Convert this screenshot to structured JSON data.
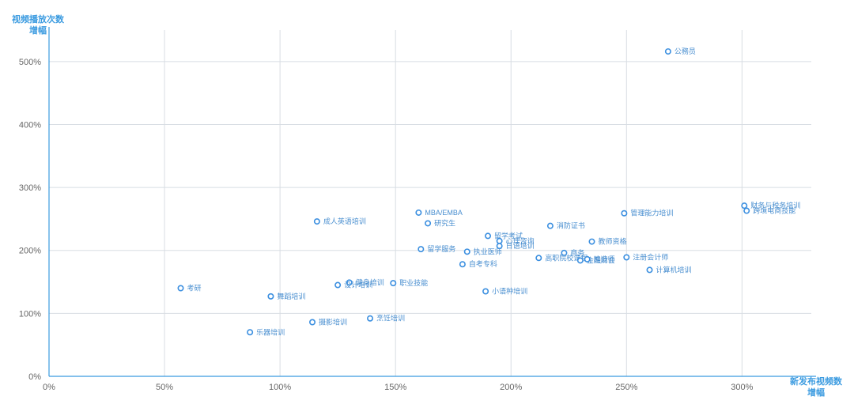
{
  "chart_data": {
    "type": "scatter",
    "title": "",
    "ylabel": [
      "视频播放次数",
      "增幅"
    ],
    "xlabel": [
      "新发布视频数",
      "增幅"
    ],
    "xlim": [
      0,
      330
    ],
    "ylim": [
      0,
      550
    ],
    "x_ticks": [
      0,
      50,
      100,
      150,
      200,
      250,
      300
    ],
    "y_ticks": [
      0,
      100,
      200,
      300,
      400,
      500
    ],
    "tick_format": "{v}%",
    "grid": true,
    "colors": {
      "point": "#3b8fe0",
      "axis": "#3b9be0",
      "grid": "#d8dde3",
      "label": "#4a8fd0"
    },
    "points": [
      {
        "label": "公務员",
        "x": 268,
        "y": 516
      },
      {
        "label": "财务与税务培训",
        "x": 301,
        "y": 271
      },
      {
        "label": "跨境电商技能",
        "x": 302,
        "y": 263
      },
      {
        "label": "管理能力培训",
        "x": 249,
        "y": 259
      },
      {
        "label": "MBA/EMBA",
        "x": 160,
        "y": 260
      },
      {
        "label": "成人英语培训",
        "x": 116,
        "y": 246
      },
      {
        "label": "研究生",
        "x": 164,
        "y": 243
      },
      {
        "label": "消防证书",
        "x": 217,
        "y": 239
      },
      {
        "label": "留学考试",
        "x": 190,
        "y": 223
      },
      {
        "label": "教师资格",
        "x": 235,
        "y": 214
      },
      {
        "label": "心理咨询",
        "x": 195,
        "y": 215
      },
      {
        "label": "商务",
        "x": 223,
        "y": 196
      },
      {
        "label": "留学服务",
        "x": 161,
        "y": 202
      },
      {
        "label": "执业医师",
        "x": 181,
        "y": 198
      },
      {
        "label": "日语培训",
        "x": 195,
        "y": 207
      },
      {
        "label": "高职院校课程",
        "x": 212,
        "y": 188
      },
      {
        "label": "金融财会",
        "x": 230,
        "y": 184
      },
      {
        "label": "建造师",
        "x": 233,
        "y": 186
      },
      {
        "label": "自考专科",
        "x": 179,
        "y": 178
      },
      {
        "label": "注册会计师",
        "x": 250,
        "y": 189
      },
      {
        "label": "计算机培训",
        "x": 260,
        "y": 169
      },
      {
        "label": "健身培训",
        "x": 130,
        "y": 149
      },
      {
        "label": "职业技能",
        "x": 149,
        "y": 148
      },
      {
        "label": "设计培训",
        "x": 125,
        "y": 145
      },
      {
        "label": "考研",
        "x": 57,
        "y": 140
      },
      {
        "label": "舞蹈培训",
        "x": 96,
        "y": 127
      },
      {
        "label": "小语种培训",
        "x": 189,
        "y": 135
      },
      {
        "label": "烹饪培训",
        "x": 139,
        "y": 92
      },
      {
        "label": "摄影培训",
        "x": 114,
        "y": 86
      },
      {
        "label": "乐器培训",
        "x": 87,
        "y": 70
      }
    ]
  }
}
